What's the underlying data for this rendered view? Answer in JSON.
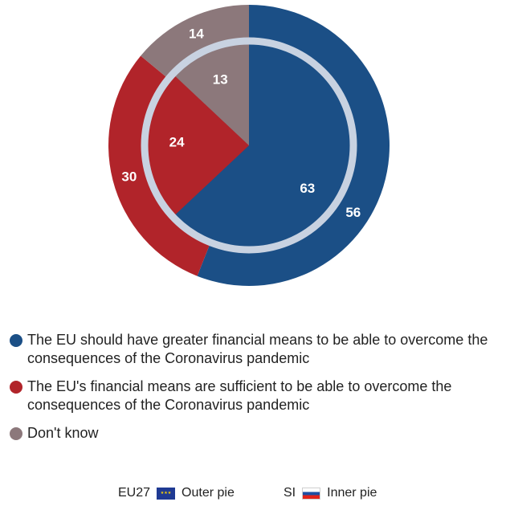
{
  "chart_data": [
    {
      "type": "pie",
      "title": "",
      "categories": [
        "The EU should have greater financial means to be able to overcome the consequences of the Coronavirus pandemic",
        "The EU's financial means are sufficient to be able to overcome the consequences of the Coronavirus pandemic",
        "Don't know"
      ],
      "series": [
        {
          "name": "Outer pie",
          "values": [
            56,
            30,
            14
          ]
        },
        {
          "name": "Inner pie",
          "values": [
            63,
            24,
            13
          ]
        }
      ],
      "colors": [
        "#1b4f86",
        "#b1242a",
        "#8c787b"
      ],
      "ring_color": "#c8d2e1"
    }
  ],
  "legend": {
    "items": [
      {
        "label": "The EU should have greater financial means to be able to overcome the consequences of the Coronavirus pandemic",
        "color": "#1b4f86"
      },
      {
        "label": "The EU's financial means are sufficient to be able to overcome the consequences of the Coronavirus pandemic",
        "color": "#b1242a"
      },
      {
        "label": "Don't know",
        "color": "#8c787b"
      }
    ]
  },
  "footer": {
    "outer_code": "EU27",
    "outer_flag_icon": "eu-flag-icon",
    "outer_label": "Outer pie",
    "inner_code": "SI",
    "inner_flag_icon": "slovenia-flag-icon",
    "inner_label": "Inner pie"
  }
}
